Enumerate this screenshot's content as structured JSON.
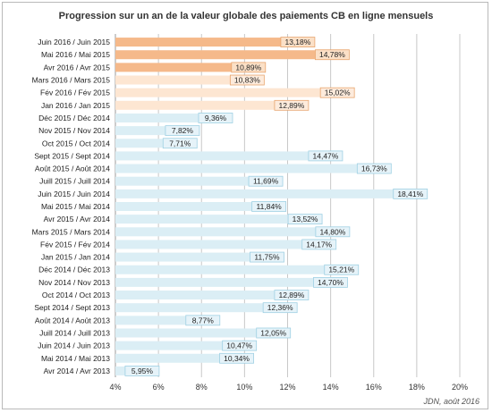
{
  "chart_data": {
    "type": "bar",
    "orientation": "horizontal",
    "title": "Progression sur un an de la valeur globale des paiements CB en ligne mensuels",
    "credit": "JDN, août 2016",
    "xlim": [
      4,
      20
    ],
    "x_ticks": [
      "4%",
      "6%",
      "8%",
      "10%",
      "12%",
      "14%",
      "16%",
      "18%",
      "20%"
    ],
    "grid": true,
    "colors": {
      "highlight": "#f5b98a",
      "highlight_label_bg": "#fbe0c7",
      "highlight_border": "#e8a56e",
      "light_orange": "#fde6d2",
      "light_orange_label_bg": "#fdebdc",
      "blue": "#dbeef5",
      "blue_label_bg": "#e6f3f9",
      "blue_border": "#9fd0e3"
    },
    "categories": [
      "Juin 2016 / Juin 2015",
      "Mai 2016 / Mai 2015",
      "Avr 2016 / Avr 2015",
      "Mars 2016 / Mars 2015",
      "Fév 2016 / Fév 2015",
      "Jan 2016 / Jan 2015",
      "Déc 2015 / Déc 2014",
      "Nov 2015 / Nov 2014",
      "Oct 2015 / Oct 2014",
      "Sept 2015 / Sept 2014",
      "Août 2015 / Août 2014",
      "Juill 2015 / Juill 2014",
      "Juin 2015 / Juin 2014",
      "Mai 2015 / Mai 2014",
      "Avr 2015 / Avr 2014",
      "Mars 2015 / Mars 2014",
      "Fév 2015 / Fév 2014",
      "Jan 2015 / Jan 2014",
      "Déc 2014 / Déc 2013",
      "Nov 2014 / Nov 2013",
      "Oct 2014 / Oct 2013",
      "Sept 2014 / Sept 2013",
      "Août 2014 / Août 2013",
      "Juill 2014 / Juill 2013",
      "Juin 2014 / Juin 2013",
      "Mai 2014 / Mai 2013",
      "Avr 2014 / Avr 2013"
    ],
    "values": [
      13.18,
      14.78,
      10.89,
      10.83,
      15.02,
      12.89,
      9.36,
      7.82,
      7.71,
      14.47,
      16.73,
      11.69,
      18.41,
      11.84,
      13.52,
      14.8,
      14.17,
      11.75,
      15.21,
      14.7,
      12.89,
      12.36,
      8.77,
      12.05,
      10.47,
      10.34,
      5.95
    ],
    "value_labels": [
      "13,18%",
      "14,78%",
      "10,89%",
      "10,83%",
      "15,02%",
      "12,89%",
      "9,36%",
      "7,82%",
      "7,71%",
      "14,47%",
      "16,73%",
      "11,69%",
      "18,41%",
      "11,84%",
      "13,52%",
      "14,80%",
      "14,17%",
      "11,75%",
      "15,21%",
      "14,70%",
      "12,89%",
      "12,36%",
      "8,77%",
      "12,05%",
      "10,47%",
      "10,34%",
      "5,95%"
    ],
    "bar_style": [
      "highlight",
      "highlight",
      "highlight",
      "light_orange",
      "light_orange",
      "light_orange",
      "blue",
      "blue",
      "blue",
      "blue",
      "blue",
      "blue",
      "blue",
      "blue",
      "blue",
      "blue",
      "blue",
      "blue",
      "blue",
      "blue",
      "blue",
      "blue",
      "blue",
      "blue",
      "blue",
      "blue",
      "blue"
    ]
  }
}
